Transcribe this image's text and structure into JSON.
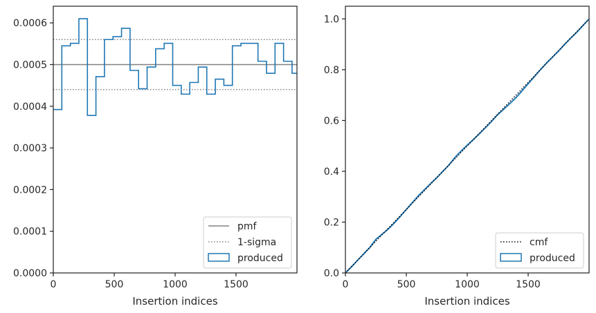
{
  "chart_data": [
    {
      "type": "line",
      "xlabel": "Insertion indices",
      "ylabel": "",
      "xlim": [
        0,
        2000
      ],
      "ylim": [
        0,
        0.00064
      ],
      "xticks": [
        0,
        500,
        1000,
        1500
      ],
      "xtick_labels": [
        "0",
        "500",
        "1000",
        "1500"
      ],
      "yticks": [
        0,
        0.0001,
        0.0002,
        0.0003,
        0.0004,
        0.0005,
        0.0006
      ],
      "ytick_labels": [
        "0.0000",
        "0.0001",
        "0.0002",
        "0.0003",
        "0.0004",
        "0.0005",
        "0.0006"
      ],
      "grid": false,
      "legend_position": "lower right",
      "pmf": 0.0005,
      "sigma_band": [
        0.00044,
        0.00056
      ],
      "bin_edges": [
        0,
        70,
        140,
        210,
        280,
        350,
        420,
        490,
        560,
        630,
        700,
        770,
        840,
        910,
        980,
        1050,
        1120,
        1190,
        1260,
        1330,
        1400,
        1470,
        1540,
        1610,
        1680,
        1750,
        1820,
        1890,
        1960
      ],
      "bin_values": [
        0.000392,
        0.000545,
        0.000551,
        0.00061,
        0.000378,
        0.000471,
        0.00056,
        0.000567,
        0.000587,
        0.000486,
        0.000442,
        0.000494,
        0.000538,
        0.000551,
        0.00045,
        0.000429,
        0.000457,
        0.000494,
        0.000429,
        0.000465,
        0.00045,
        0.000545,
        0.000551,
        0.000551,
        0.000508,
        0.000479,
        0.000551,
        0.000508,
        0.000479
      ],
      "series": [
        {
          "name": "pmf",
          "style": "solid",
          "color": "#808080"
        },
        {
          "name": "1-sigma",
          "style": "dotted",
          "color": "#808080"
        },
        {
          "name": "produced",
          "style": "step-histogram",
          "color": "#1f77b4"
        }
      ]
    },
    {
      "type": "line",
      "xlabel": "Insertion indices",
      "ylabel": "",
      "xlim": [
        0,
        2000
      ],
      "ylim": [
        0,
        1.05
      ],
      "xticks": [
        0,
        500,
        1000,
        1500
      ],
      "xtick_labels": [
        "0",
        "500",
        "1000",
        "1500"
      ],
      "yticks": [
        0,
        0.2,
        0.4,
        0.6,
        0.8,
        1.0
      ],
      "ytick_labels": [
        "0.0",
        "0.2",
        "0.4",
        "0.6",
        "0.8",
        "1.0"
      ],
      "grid": false,
      "legend_position": "lower right",
      "cmf": {
        "x": [
          0,
          2000
        ],
        "y": [
          0,
          1.0
        ]
      },
      "produced": {
        "x": [
          0,
          50,
          100,
          150,
          200,
          250,
          300,
          350,
          400,
          450,
          500,
          550,
          600,
          650,
          700,
          750,
          800,
          850,
          900,
          950,
          1000,
          1050,
          1100,
          1150,
          1200,
          1250,
          1300,
          1350,
          1400,
          1450,
          1500,
          1550,
          1600,
          1650,
          1700,
          1750,
          1800,
          1850,
          1900,
          1950,
          2000
        ],
        "y": [
          0,
          0.024,
          0.05,
          0.075,
          0.1,
          0.132,
          0.152,
          0.172,
          0.196,
          0.222,
          0.25,
          0.277,
          0.304,
          0.328,
          0.352,
          0.375,
          0.4,
          0.425,
          0.455,
          0.48,
          0.503,
          0.525,
          0.548,
          0.572,
          0.597,
          0.623,
          0.645,
          0.667,
          0.69,
          0.717,
          0.745,
          0.772,
          0.8,
          0.826,
          0.85,
          0.874,
          0.9,
          0.925,
          0.948,
          0.974,
          1.0
        ]
      },
      "series": [
        {
          "name": "cmf",
          "style": "dotted",
          "color": "#000000"
        },
        {
          "name": "produced",
          "style": "solid",
          "color": "#1f77b4"
        }
      ]
    }
  ]
}
